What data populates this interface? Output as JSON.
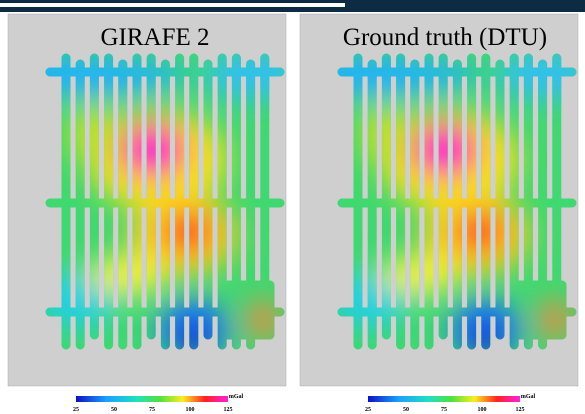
{
  "panels": [
    {
      "title": "GIRAFE 2",
      "colorbar": {
        "ticks": [
          25,
          50,
          75,
          100,
          125
        ],
        "unit": "mGal"
      }
    },
    {
      "title": "Ground truth (DTU)",
      "colorbar": {
        "ticks": [
          25,
          50,
          75,
          100,
          125
        ],
        "unit": "mGal"
      }
    }
  ]
}
